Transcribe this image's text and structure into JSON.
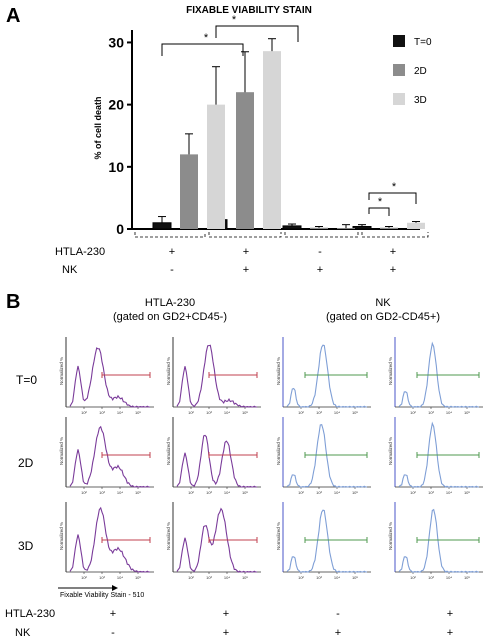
{
  "panel_a": {
    "letter": "A",
    "title": "FIXABLE VIABILITY STAIN",
    "ylabel": "% of cell death",
    "yticks": [
      "0",
      "10",
      "20",
      "30"
    ],
    "legend": [
      {
        "label": "T=0",
        "color": "#111111"
      },
      {
        "label": "2D",
        "color": "#8c8c8c"
      },
      {
        "label": "3D",
        "color": "#d6d6d6"
      }
    ],
    "sig_star": "*",
    "row_labels": [
      "HTLA-230",
      "NK"
    ],
    "groups_htla": [
      "+",
      "+",
      "-",
      "+"
    ],
    "groups_nk": [
      "-",
      "+",
      "+",
      "+"
    ]
  },
  "chart_data": {
    "type": "bar",
    "title": "FIXABLE VIABILITY STAIN",
    "ylabel": "% of cell death",
    "xlabel": "",
    "ylim": [
      0,
      32
    ],
    "categories": [
      "HTLA-230 + / NK -",
      "HTLA-230 + / NK +",
      "HTLA-230 - / NK +",
      "HTLA-230 + / NK +"
    ],
    "series": [
      {
        "name": "T=0",
        "values": [
          1.0,
          1.5,
          0.5,
          0.4
        ],
        "errors": [
          1.0,
          1.7,
          0.3,
          0.3
        ]
      },
      {
        "name": "2D",
        "values": [
          12.0,
          22.0,
          0.2,
          0.2
        ],
        "errors": [
          3.3,
          6.5,
          0.2,
          0.2
        ]
      },
      {
        "name": "3D",
        "values": [
          20.0,
          28.6,
          0.1,
          1.0
        ],
        "errors": [
          6.1,
          2.0,
          0.6,
          0.2
        ]
      }
    ],
    "legend_position": "right",
    "grid": false
  },
  "panel_b": {
    "letter": "B",
    "header_left": [
      "HTLA-230",
      "(gated on GD2+CD45-)"
    ],
    "header_right": [
      "NK",
      "(gated on GD2-CD45+)"
    ],
    "row_labels": [
      "T=0",
      "2D",
      "3D"
    ],
    "axis_label_y": "Normalized %",
    "axis_x_label": "Fixable Viability Stain - 510",
    "tick_labels": [
      "10²",
      "10³",
      "10⁴",
      "10⁵"
    ],
    "bottom_labels": [
      "HTLA-230",
      "NK"
    ],
    "bottom_htla": [
      "+",
      "+",
      "-",
      "+"
    ],
    "bottom_nk": [
      "-",
      "+",
      "+",
      "+"
    ],
    "colors": {
      "purple": "#7a3b9a",
      "blue": "#7f9fd6",
      "red_gate": "#c0404f",
      "green_gate": "#4f9a4f",
      "axis_blue": "#4a56c8"
    }
  }
}
